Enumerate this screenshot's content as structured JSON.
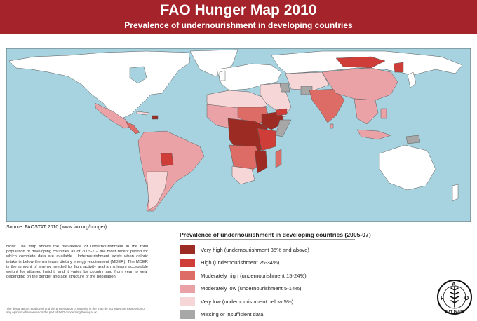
{
  "header": {
    "title": "FAO Hunger Map 2010",
    "subtitle": "Prevalence of undernourishment in developing countries"
  },
  "colors": {
    "header_bg": "#a5232a",
    "ocean": "#a7d3e0",
    "developed": "#ffffff",
    "very_high": "#9b2b23",
    "high": "#cf3d38",
    "moderately_high": "#de6c66",
    "moderately_low": "#eaa2a6",
    "very_low": "#f6d6d6",
    "missing": "#a7a7a7"
  },
  "map": {
    "name": "World map of undernourishment prevalence"
  },
  "source": "Source: FAOSTAT 2010 (www.fao.org/hunger)",
  "note": "Note: The map shows the prevalence of undernourishment in the total population of developing countries as of 2005-7 – the most recent period for which complete data are available. Undernourishment exists when caloric intake is below the minimum dietary energy requirement (MDER). The MDER is the amount of energy needed for light activity and a minimum acceptable weight for attained height, and it varies by country and from year to year depending on the gender and age structure of the population.",
  "disclaimer": "The designations employed and the presentation of material in the map do not imply the expression of any opinion whatsoever on the part of FAO concerning the legal or",
  "legend": {
    "title": "Prevalence of undernourishment in developing countries (2005-07)",
    "items": [
      {
        "label": "Very high (undernourishment 35% and above)",
        "color": "#9b2b23"
      },
      {
        "label": "High (undernourishment 25-34%)",
        "color": "#cf3d38"
      },
      {
        "label": "Moderately high (undernourishment 15-24%)",
        "color": "#de6c66"
      },
      {
        "label": "Moderately low (undernourishment 5-14%)",
        "color": "#eaa2a6"
      },
      {
        "label": "Very low (undernourishment below 5%)",
        "color": "#f6d6d6"
      },
      {
        "label": "Missing or insufficient data",
        "color": "#a7a7a7"
      }
    ]
  },
  "logo": {
    "letters": "FAO",
    "motto": "FIAT PANIS"
  }
}
